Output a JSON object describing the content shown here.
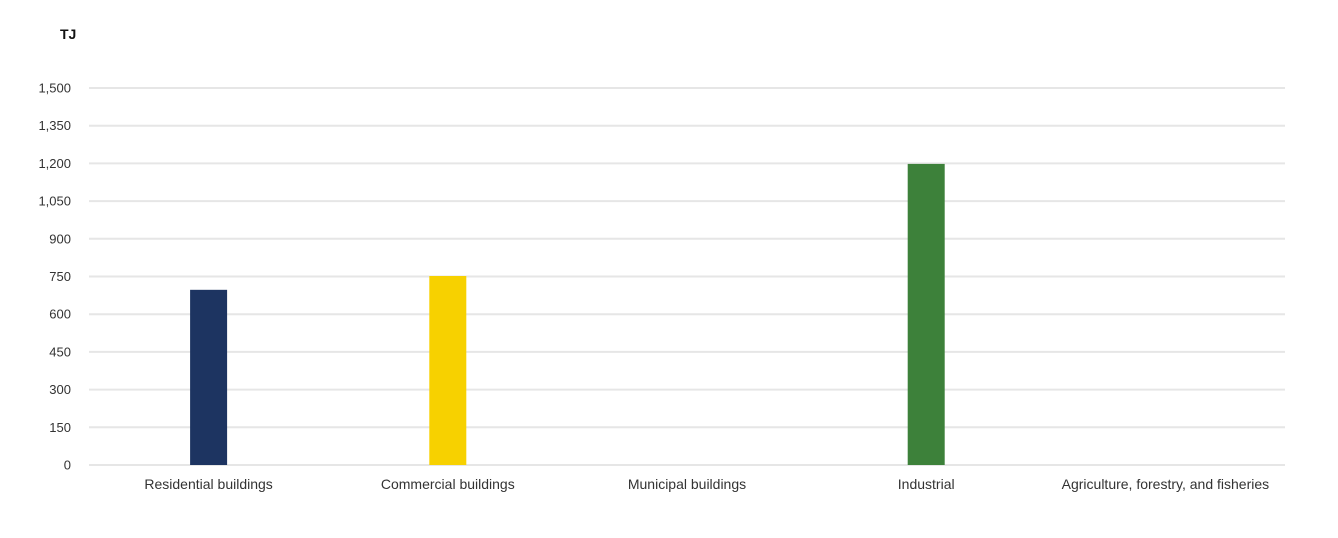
{
  "chart_data": {
    "type": "bar",
    "unit_label": "TJ",
    "categories": [
      "Residential buildings",
      "Commercial buildings",
      "Municipal buildings",
      "Industrial",
      "Agriculture, forestry, and fisheries"
    ],
    "values": [
      697,
      752,
      0,
      1198,
      0
    ],
    "bar_colors": [
      "#1d3461",
      "#f7d100",
      "#cccccc",
      "#3d813a",
      "#cccccc"
    ],
    "yticks": [
      0,
      150,
      300,
      450,
      600,
      750,
      900,
      1050,
      1200,
      1350,
      1500
    ],
    "ytick_labels": [
      "0",
      "150",
      "300",
      "450",
      "600",
      "750",
      "900",
      "1,050",
      "1,200",
      "1,350",
      "1,500"
    ],
    "ylim": [
      0,
      1500
    ],
    "grid": true,
    "legend": "none"
  }
}
